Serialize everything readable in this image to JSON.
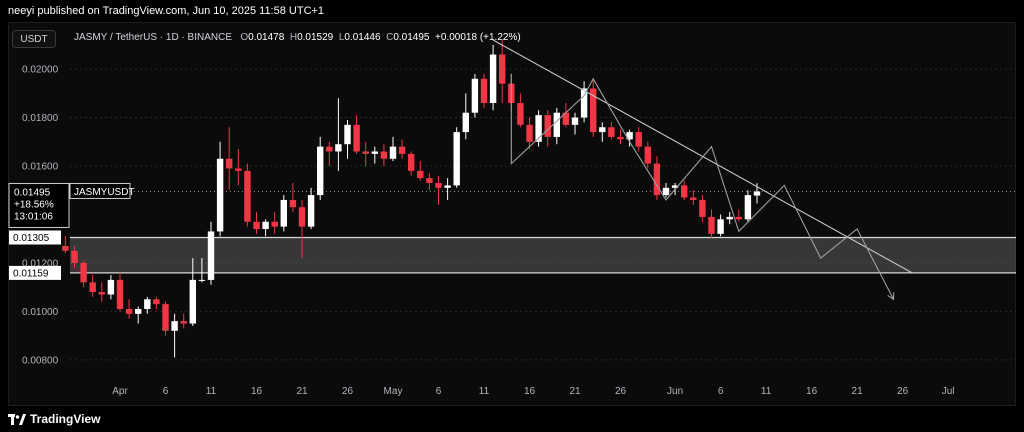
{
  "header": {
    "published_by": "neeyi published on TradingView.com, Jun 10, 2025 11:58 UTC+1"
  },
  "toolbar": {
    "quote_currency": "USDT"
  },
  "legend": {
    "symbol": "JASMY / TetherUS · 1D · BINANCE",
    "open_label": "O",
    "open": "0.01478",
    "high_label": "H",
    "high": "0.01529",
    "low_label": "L",
    "low": "0.01446",
    "close_label": "C",
    "close": "0.01495",
    "change": "+0.00018 (+1.22%)"
  },
  "price_tag": {
    "price": "0.01495",
    "change_pct": "+18.56%",
    "countdown": "13:01:06",
    "symbol": "JASMYUSDT"
  },
  "zone_labels": {
    "upper": "0.01305",
    "lower": "0.01159"
  },
  "footer": {
    "brand": "TradingView"
  },
  "colors": {
    "up": "#ffffff",
    "down": "#f23645",
    "background": "#0b0b0b",
    "zone_fill": "#5d5d5d",
    "line": "#9e9e9e"
  },
  "chart_data": {
    "type": "candlestick",
    "title": "JASMY / TetherUS · 1D · BINANCE",
    "ylim": [
      0.0075,
      0.0212
    ],
    "y_ticks": [
      "0.02000",
      "0.01800",
      "0.01600",
      "0.01200",
      "0.01000",
      "0.00800"
    ],
    "x_ticks": [
      {
        "label": "Apr",
        "date": "2025-04-01"
      },
      {
        "label": "6",
        "date": "2025-04-06"
      },
      {
        "label": "11",
        "date": "2025-04-11"
      },
      {
        "label": "16",
        "date": "2025-04-16"
      },
      {
        "label": "21",
        "date": "2025-04-21"
      },
      {
        "label": "26",
        "date": "2025-04-26"
      },
      {
        "label": "May",
        "date": "2025-05-01"
      },
      {
        "label": "6",
        "date": "2025-05-06"
      },
      {
        "label": "11",
        "date": "2025-05-11"
      },
      {
        "label": "16",
        "date": "2025-05-16"
      },
      {
        "label": "21",
        "date": "2025-05-21"
      },
      {
        "label": "26",
        "date": "2025-05-26"
      },
      {
        "label": "Jun",
        "date": "2025-06-01"
      },
      {
        "label": "6",
        "date": "2025-06-06"
      },
      {
        "label": "11",
        "date": "2025-06-11"
      },
      {
        "label": "16",
        "date": "2025-06-16"
      },
      {
        "label": "21",
        "date": "2025-06-21"
      },
      {
        "label": "26",
        "date": "2025-06-26"
      },
      {
        "label": "Jul",
        "date": "2025-07-01"
      }
    ],
    "candles": [
      {
        "date": "2025-03-26",
        "o": 0.0127,
        "h": 0.0131,
        "l": 0.0124,
        "c": 0.0125
      },
      {
        "date": "2025-03-27",
        "o": 0.0125,
        "h": 0.0127,
        "l": 0.0118,
        "c": 0.012
      },
      {
        "date": "2025-03-28",
        "o": 0.012,
        "h": 0.0121,
        "l": 0.011,
        "c": 0.0112
      },
      {
        "date": "2025-03-29",
        "o": 0.0112,
        "h": 0.0115,
        "l": 0.0106,
        "c": 0.0108
      },
      {
        "date": "2025-03-30",
        "o": 0.0108,
        "h": 0.0112,
        "l": 0.0104,
        "c": 0.0107
      },
      {
        "date": "2025-03-31",
        "o": 0.0107,
        "h": 0.0115,
        "l": 0.0105,
        "c": 0.0113
      },
      {
        "date": "2025-04-01",
        "o": 0.0113,
        "h": 0.0116,
        "l": 0.01,
        "c": 0.0101
      },
      {
        "date": "2025-04-02",
        "o": 0.0101,
        "h": 0.0105,
        "l": 0.0097,
        "c": 0.0099
      },
      {
        "date": "2025-04-03",
        "o": 0.0099,
        "h": 0.0102,
        "l": 0.0095,
        "c": 0.0101
      },
      {
        "date": "2025-04-04",
        "o": 0.0101,
        "h": 0.0106,
        "l": 0.0099,
        "c": 0.0105
      },
      {
        "date": "2025-04-05",
        "o": 0.0105,
        "h": 0.0106,
        "l": 0.0101,
        "c": 0.0103
      },
      {
        "date": "2025-04-06",
        "o": 0.0103,
        "h": 0.0104,
        "l": 0.009,
        "c": 0.0092
      },
      {
        "date": "2025-04-07",
        "o": 0.0092,
        "h": 0.0099,
        "l": 0.0081,
        "c": 0.0096
      },
      {
        "date": "2025-04-08",
        "o": 0.0096,
        "h": 0.0099,
        "l": 0.0093,
        "c": 0.0095
      },
      {
        "date": "2025-04-09",
        "o": 0.0095,
        "h": 0.0122,
        "l": 0.0094,
        "c": 0.0113
      },
      {
        "date": "2025-04-10",
        "o": 0.0113,
        "h": 0.0122,
        "l": 0.0112,
        "c": 0.0113
      },
      {
        "date": "2025-04-11",
        "o": 0.0113,
        "h": 0.0137,
        "l": 0.0111,
        "c": 0.0133
      },
      {
        "date": "2025-04-12",
        "o": 0.0133,
        "h": 0.017,
        "l": 0.0131,
        "c": 0.0163
      },
      {
        "date": "2025-04-13",
        "o": 0.0163,
        "h": 0.0176,
        "l": 0.015,
        "c": 0.0159
      },
      {
        "date": "2025-04-14",
        "o": 0.0159,
        "h": 0.0167,
        "l": 0.0152,
        "c": 0.0158
      },
      {
        "date": "2025-04-15",
        "o": 0.0158,
        "h": 0.0161,
        "l": 0.0135,
        "c": 0.0137
      },
      {
        "date": "2025-04-16",
        "o": 0.0137,
        "h": 0.0141,
        "l": 0.0132,
        "c": 0.0134
      },
      {
        "date": "2025-04-17",
        "o": 0.0134,
        "h": 0.0138,
        "l": 0.0131,
        "c": 0.0137
      },
      {
        "date": "2025-04-18",
        "o": 0.0137,
        "h": 0.0141,
        "l": 0.0132,
        "c": 0.0135
      },
      {
        "date": "2025-04-19",
        "o": 0.0135,
        "h": 0.0148,
        "l": 0.0133,
        "c": 0.0146
      },
      {
        "date": "2025-04-20",
        "o": 0.0146,
        "h": 0.0153,
        "l": 0.0141,
        "c": 0.0143
      },
      {
        "date": "2025-04-21",
        "o": 0.0143,
        "h": 0.0146,
        "l": 0.0122,
        "c": 0.0135
      },
      {
        "date": "2025-04-22",
        "o": 0.0135,
        "h": 0.0151,
        "l": 0.0134,
        "c": 0.0148
      },
      {
        "date": "2025-04-23",
        "o": 0.0148,
        "h": 0.0172,
        "l": 0.0146,
        "c": 0.0168
      },
      {
        "date": "2025-04-24",
        "o": 0.0168,
        "h": 0.017,
        "l": 0.016,
        "c": 0.0166
      },
      {
        "date": "2025-04-25",
        "o": 0.0166,
        "h": 0.0188,
        "l": 0.0158,
        "c": 0.0169
      },
      {
        "date": "2025-04-26",
        "o": 0.0169,
        "h": 0.0179,
        "l": 0.0163,
        "c": 0.0177
      },
      {
        "date": "2025-04-27",
        "o": 0.0177,
        "h": 0.0181,
        "l": 0.0165,
        "c": 0.0166
      },
      {
        "date": "2025-04-28",
        "o": 0.0166,
        "h": 0.017,
        "l": 0.016,
        "c": 0.0165
      },
      {
        "date": "2025-04-29",
        "o": 0.0165,
        "h": 0.0168,
        "l": 0.0161,
        "c": 0.0166
      },
      {
        "date": "2025-04-30",
        "o": 0.0166,
        "h": 0.0169,
        "l": 0.016,
        "c": 0.0163
      },
      {
        "date": "2025-05-01",
        "o": 0.0163,
        "h": 0.0172,
        "l": 0.0162,
        "c": 0.0168
      },
      {
        "date": "2025-05-02",
        "o": 0.0168,
        "h": 0.0171,
        "l": 0.0163,
        "c": 0.0165
      },
      {
        "date": "2025-05-03",
        "o": 0.0165,
        "h": 0.0166,
        "l": 0.0156,
        "c": 0.0158
      },
      {
        "date": "2025-05-04",
        "o": 0.0158,
        "h": 0.0162,
        "l": 0.0154,
        "c": 0.0155
      },
      {
        "date": "2025-05-05",
        "o": 0.0155,
        "h": 0.0157,
        "l": 0.015,
        "c": 0.0153
      },
      {
        "date": "2025-05-06",
        "o": 0.0153,
        "h": 0.0156,
        "l": 0.0144,
        "c": 0.0151
      },
      {
        "date": "2025-05-07",
        "o": 0.0151,
        "h": 0.0155,
        "l": 0.0146,
        "c": 0.0152
      },
      {
        "date": "2025-05-08",
        "o": 0.0152,
        "h": 0.0176,
        "l": 0.0151,
        "c": 0.0174
      },
      {
        "date": "2025-05-09",
        "o": 0.0174,
        "h": 0.019,
        "l": 0.0171,
        "c": 0.0182
      },
      {
        "date": "2025-05-10",
        "o": 0.0182,
        "h": 0.0198,
        "l": 0.018,
        "c": 0.0196
      },
      {
        "date": "2025-05-11",
        "o": 0.0196,
        "h": 0.0198,
        "l": 0.0184,
        "c": 0.0186
      },
      {
        "date": "2025-05-12",
        "o": 0.0186,
        "h": 0.021,
        "l": 0.0183,
        "c": 0.0206
      },
      {
        "date": "2025-05-13",
        "o": 0.0206,
        "h": 0.0212,
        "l": 0.0186,
        "c": 0.0194
      },
      {
        "date": "2025-05-14",
        "o": 0.0194,
        "h": 0.0198,
        "l": 0.0182,
        "c": 0.0186
      },
      {
        "date": "2025-05-15",
        "o": 0.0186,
        "h": 0.019,
        "l": 0.0176,
        "c": 0.0177
      },
      {
        "date": "2025-05-16",
        "o": 0.0177,
        "h": 0.018,
        "l": 0.0167,
        "c": 0.017
      },
      {
        "date": "2025-05-17",
        "o": 0.017,
        "h": 0.0183,
        "l": 0.0168,
        "c": 0.0181
      },
      {
        "date": "2025-05-18",
        "o": 0.0181,
        "h": 0.0183,
        "l": 0.0168,
        "c": 0.0172
      },
      {
        "date": "2025-05-19",
        "o": 0.0172,
        "h": 0.0184,
        "l": 0.0169,
        "c": 0.0182
      },
      {
        "date": "2025-05-20",
        "o": 0.0182,
        "h": 0.0186,
        "l": 0.0176,
        "c": 0.0177
      },
      {
        "date": "2025-05-21",
        "o": 0.0177,
        "h": 0.0182,
        "l": 0.0173,
        "c": 0.018
      },
      {
        "date": "2025-05-22",
        "o": 0.018,
        "h": 0.0195,
        "l": 0.0178,
        "c": 0.0192
      },
      {
        "date": "2025-05-23",
        "o": 0.0192,
        "h": 0.0196,
        "l": 0.0172,
        "c": 0.0174
      },
      {
        "date": "2025-05-24",
        "o": 0.0174,
        "h": 0.0178,
        "l": 0.017,
        "c": 0.0176
      },
      {
        "date": "2025-05-25",
        "o": 0.0176,
        "h": 0.0178,
        "l": 0.0171,
        "c": 0.0172
      },
      {
        "date": "2025-05-26",
        "o": 0.0172,
        "h": 0.0175,
        "l": 0.0169,
        "c": 0.0171
      },
      {
        "date": "2025-05-27",
        "o": 0.0171,
        "h": 0.0175,
        "l": 0.0168,
        "c": 0.0174
      },
      {
        "date": "2025-05-28",
        "o": 0.0174,
        "h": 0.0176,
        "l": 0.0166,
        "c": 0.0168
      },
      {
        "date": "2025-05-29",
        "o": 0.0168,
        "h": 0.017,
        "l": 0.0159,
        "c": 0.0161
      },
      {
        "date": "2025-05-30",
        "o": 0.0161,
        "h": 0.0164,
        "l": 0.0146,
        "c": 0.0148
      },
      {
        "date": "2025-05-31",
        "o": 0.0148,
        "h": 0.0153,
        "l": 0.0147,
        "c": 0.0151
      },
      {
        "date": "2025-06-01",
        "o": 0.0151,
        "h": 0.0153,
        "l": 0.0148,
        "c": 0.0152
      },
      {
        "date": "2025-06-02",
        "o": 0.0152,
        "h": 0.0154,
        "l": 0.0146,
        "c": 0.0147
      },
      {
        "date": "2025-06-03",
        "o": 0.0147,
        "h": 0.015,
        "l": 0.0144,
        "c": 0.0146
      },
      {
        "date": "2025-06-04",
        "o": 0.0146,
        "h": 0.0148,
        "l": 0.0137,
        "c": 0.0139
      },
      {
        "date": "2025-06-05",
        "o": 0.0139,
        "h": 0.0142,
        "l": 0.013,
        "c": 0.0132
      },
      {
        "date": "2025-06-06",
        "o": 0.0132,
        "h": 0.014,
        "l": 0.0131,
        "c": 0.0138
      },
      {
        "date": "2025-06-07",
        "o": 0.0138,
        "h": 0.0141,
        "l": 0.0136,
        "c": 0.0139
      },
      {
        "date": "2025-06-08",
        "o": 0.0139,
        "h": 0.0142,
        "l": 0.0137,
        "c": 0.0138
      },
      {
        "date": "2025-06-09",
        "o": 0.0138,
        "h": 0.015,
        "l": 0.0137,
        "c": 0.0148
      },
      {
        "date": "2025-06-10",
        "o": 0.01478,
        "h": 0.01529,
        "l": 0.01446,
        "c": 0.01495
      }
    ],
    "support_zone": {
      "upper": 0.01305,
      "lower": 0.01159
    },
    "trendline": [
      {
        "date": "2025-05-12",
        "price": 0.0212
      },
      {
        "date": "2025-06-27",
        "price": 0.0116
      }
    ],
    "pattern_path": [
      {
        "date": "2025-05-14",
        "price": 0.0198
      },
      {
        "date": "2025-05-14",
        "price": 0.0161
      },
      {
        "date": "2025-05-18",
        "price": 0.0175
      },
      {
        "date": "2025-05-22",
        "price": 0.0189
      },
      {
        "date": "2025-05-23",
        "price": 0.0196
      },
      {
        "date": "2025-05-27",
        "price": 0.017
      },
      {
        "date": "2025-05-31",
        "price": 0.0146
      },
      {
        "date": "2025-06-05",
        "price": 0.0168
      },
      {
        "date": "2025-06-08",
        "price": 0.0133
      },
      {
        "date": "2025-06-13",
        "price": 0.0152
      },
      {
        "date": "2025-06-17",
        "price": 0.0122
      },
      {
        "date": "2025-06-21",
        "price": 0.0134
      },
      {
        "date": "2025-06-25",
        "price": 0.0105
      }
    ],
    "last_price": 0.01495
  }
}
